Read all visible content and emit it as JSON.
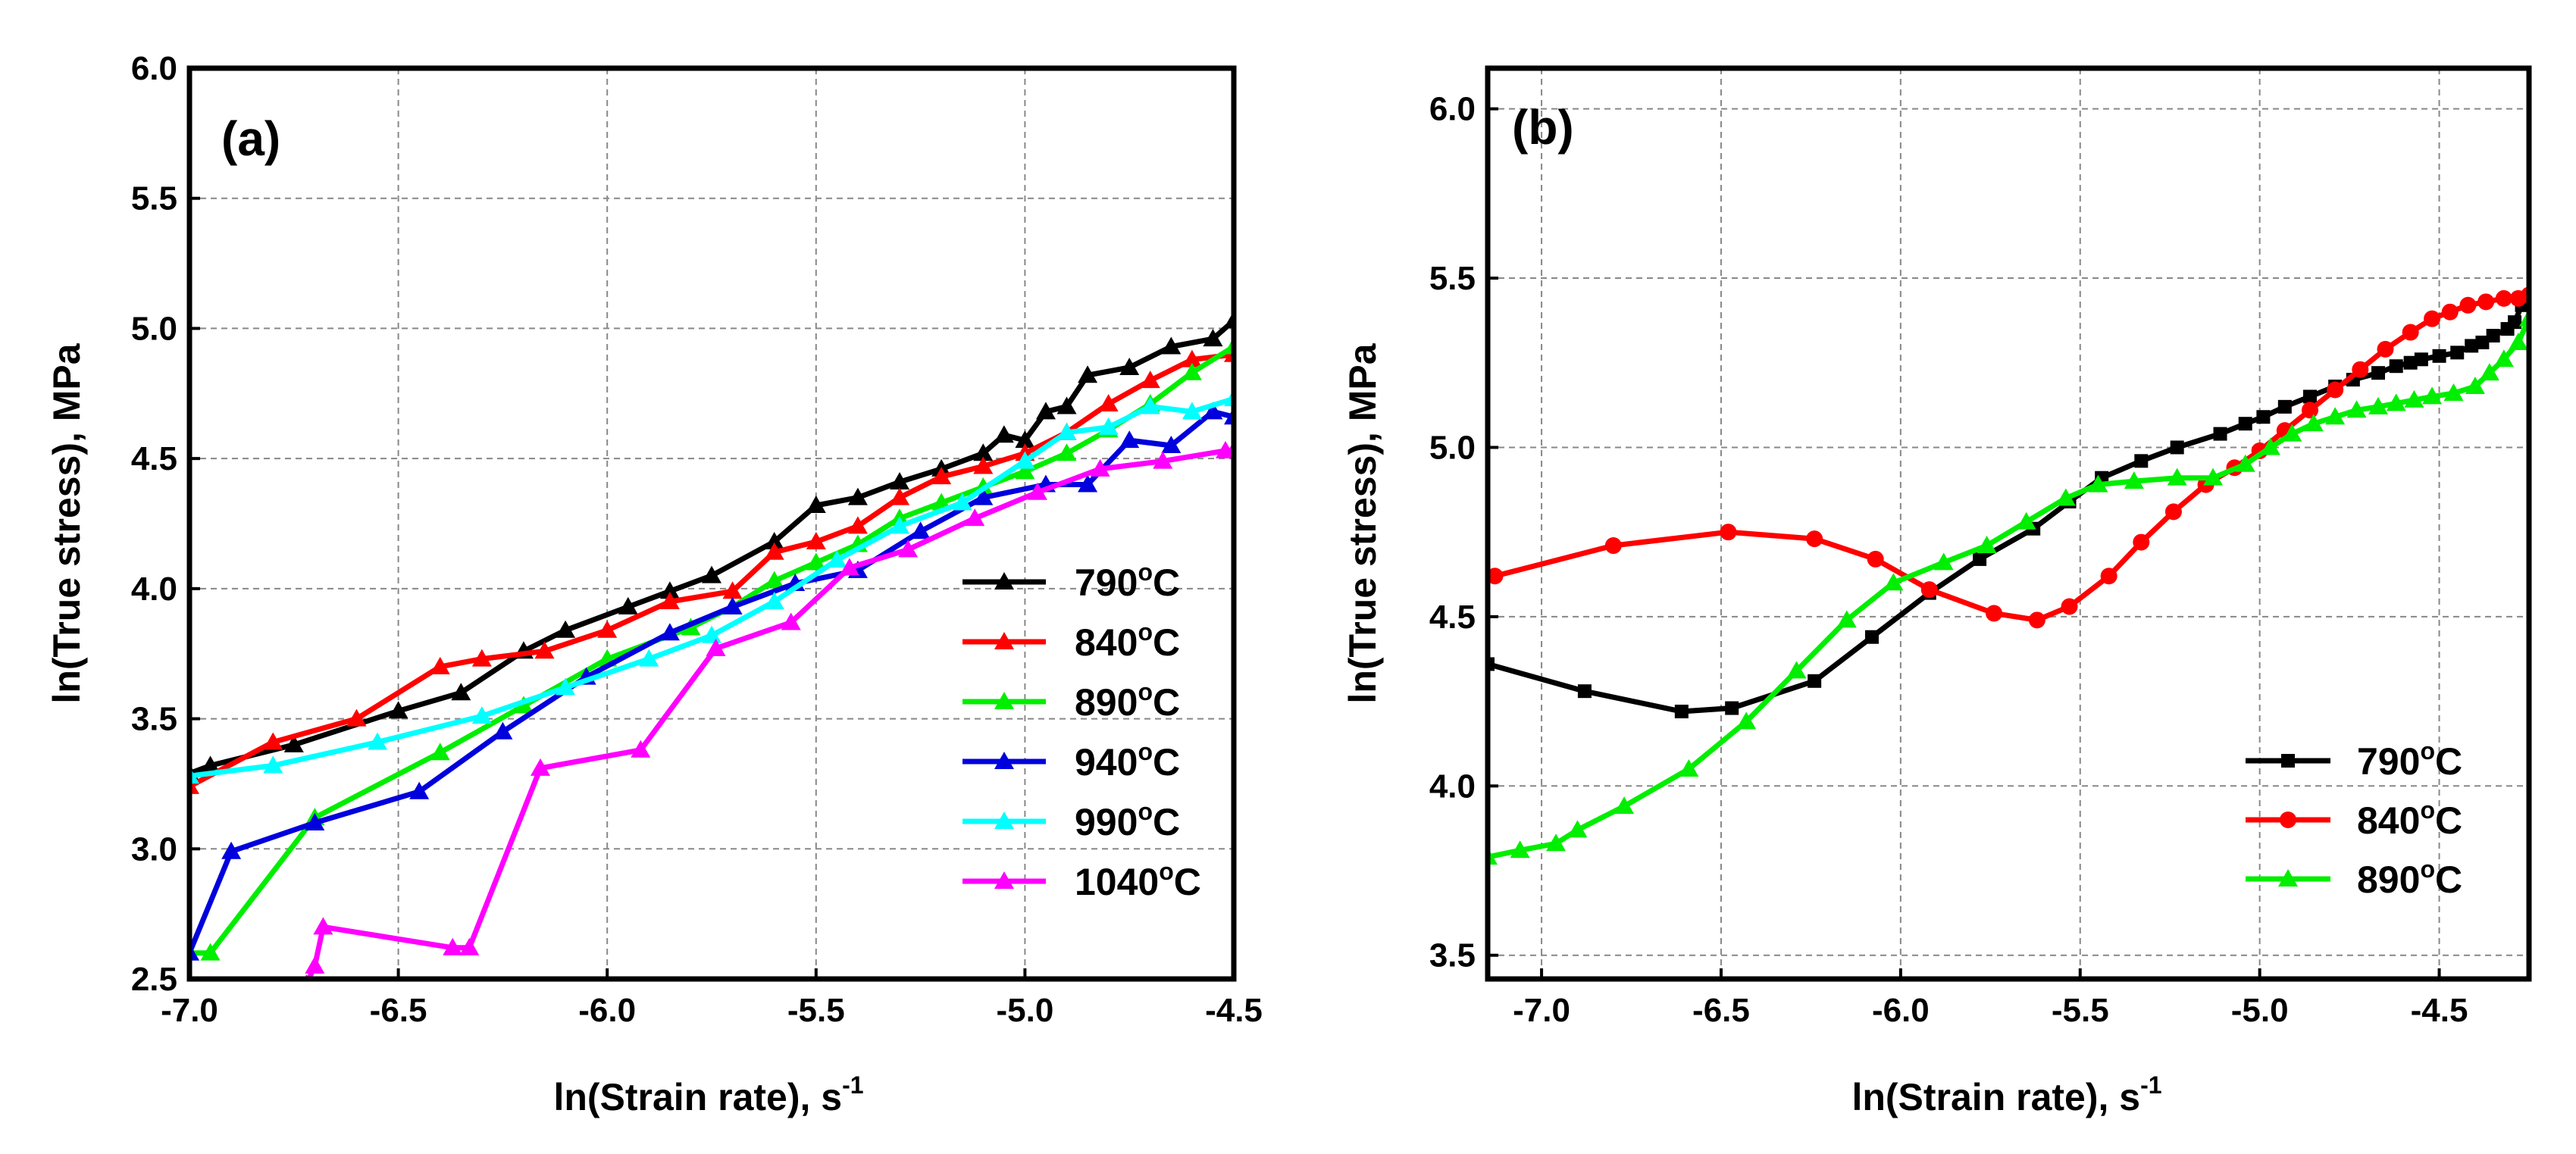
{
  "chart_data": [
    {
      "type": "line",
      "panel_label": "(a)",
      "xlabel": "ln(Strain rate), s",
      "xlabel_sup": "-1",
      "ylabel": "ln(True stress), MPa",
      "xlim": [
        -7.0,
        -4.5
      ],
      "ylim": [
        2.5,
        6.0
      ],
      "xticks": [
        "-7.0",
        "-6.5",
        "-6.0",
        "-5.5",
        "-5.0",
        "-4.5"
      ],
      "yticks": [
        "2.5",
        "3.0",
        "3.5",
        "4.0",
        "4.5",
        "5.0",
        "5.5",
        "6.0"
      ],
      "grid": true,
      "legend_position": "lower-right",
      "series": [
        {
          "name": "790",
          "unit": "°C",
          "color": "#000000",
          "marker": "triangle",
          "x": [
            -7.0,
            -6.95,
            -6.75,
            -6.5,
            -6.35,
            -6.2,
            -6.1,
            -5.95,
            -5.85,
            -5.75,
            -5.6,
            -5.5,
            -5.4,
            -5.3,
            -5.2,
            -5.1,
            -5.05,
            -5.0,
            -4.95,
            -4.9,
            -4.85,
            -4.75,
            -4.65,
            -4.55,
            -4.5
          ],
          "y": [
            3.29,
            3.32,
            3.4,
            3.53,
            3.6,
            3.76,
            3.84,
            3.93,
            3.99,
            4.05,
            4.18,
            4.32,
            4.35,
            4.41,
            4.46,
            4.52,
            4.59,
            4.57,
            4.68,
            4.7,
            4.82,
            4.85,
            4.93,
            4.96,
            5.03
          ]
        },
        {
          "name": "840",
          "unit": "°C",
          "color": "#ff0000",
          "marker": "triangle",
          "x": [
            -7.0,
            -6.8,
            -6.6,
            -6.4,
            -6.3,
            -6.15,
            -6.0,
            -5.85,
            -5.7,
            -5.6,
            -5.5,
            -5.4,
            -5.3,
            -5.2,
            -5.1,
            -5.0,
            -4.9,
            -4.8,
            -4.7,
            -4.6,
            -4.5
          ],
          "y": [
            3.24,
            3.41,
            3.5,
            3.7,
            3.73,
            3.76,
            3.84,
            3.95,
            3.99,
            4.14,
            4.18,
            4.24,
            4.35,
            4.43,
            4.47,
            4.52,
            4.6,
            4.71,
            4.8,
            4.88,
            4.9
          ]
        },
        {
          "name": "890",
          "unit": "°C",
          "color": "#00ee00",
          "marker": "triangle",
          "x": [
            -7.0,
            -6.95,
            -6.7,
            -6.4,
            -6.2,
            -6.0,
            -5.8,
            -5.7,
            -5.6,
            -5.5,
            -5.4,
            -5.3,
            -5.2,
            -5.1,
            -5.0,
            -4.9,
            -4.8,
            -4.7,
            -4.6,
            -4.5
          ],
          "y": [
            2.6,
            2.6,
            3.12,
            3.37,
            3.55,
            3.73,
            3.85,
            3.93,
            4.03,
            4.1,
            4.17,
            4.27,
            4.33,
            4.39,
            4.45,
            4.52,
            4.61,
            4.71,
            4.83,
            4.93
          ]
        },
        {
          "name": "940",
          "unit": "°C",
          "color": "#0000dd",
          "marker": "triangle",
          "x": [
            -7.0,
            -6.9,
            -6.7,
            -6.45,
            -6.25,
            -6.05,
            -5.85,
            -5.7,
            -5.55,
            -5.4,
            -5.25,
            -5.1,
            -4.95,
            -4.85,
            -4.75,
            -4.65,
            -4.55,
            -4.5
          ],
          "y": [
            2.6,
            2.99,
            3.1,
            3.22,
            3.45,
            3.66,
            3.83,
            3.93,
            4.02,
            4.07,
            4.22,
            4.35,
            4.4,
            4.4,
            4.57,
            4.55,
            4.68,
            4.66
          ]
        },
        {
          "name": "990",
          "unit": "°C",
          "color": "#00ffff",
          "marker": "triangle",
          "x": [
            -7.0,
            -6.8,
            -6.55,
            -6.3,
            -6.1,
            -5.9,
            -5.75,
            -5.6,
            -5.45,
            -5.3,
            -5.15,
            -5.0,
            -4.9,
            -4.8,
            -4.7,
            -4.6,
            -4.5
          ],
          "y": [
            3.28,
            3.32,
            3.41,
            3.51,
            3.62,
            3.73,
            3.82,
            3.95,
            4.11,
            4.24,
            4.33,
            4.49,
            4.6,
            4.62,
            4.7,
            4.68,
            4.73
          ]
        },
        {
          "name": "1040",
          "unit": "°C",
          "color": "#ff00ff",
          "marker": "triangle",
          "x": [
            -6.72,
            -6.7,
            -6.68,
            -6.37,
            -6.33,
            -6.16,
            -5.92,
            -5.74,
            -5.56,
            -5.42,
            -5.28,
            -5.12,
            -4.97,
            -4.82,
            -4.67,
            -4.52,
            -4.5
          ],
          "y": [
            2.48,
            2.55,
            2.7,
            2.62,
            2.62,
            3.31,
            3.38,
            3.77,
            3.87,
            4.08,
            4.15,
            4.27,
            4.37,
            4.46,
            4.49,
            4.53,
            4.53
          ]
        }
      ]
    },
    {
      "type": "line",
      "panel_label": "(b)",
      "xlabel": "ln(Strain rate), s",
      "xlabel_sup": "-1",
      "ylabel": "ln(True stress), MPa",
      "xlim": [
        -7.15,
        -4.25
      ],
      "ylim": [
        3.43,
        6.12
      ],
      "xticks": [
        "-7.0",
        "-6.5",
        "-6.0",
        "-5.5",
        "-5.0",
        "-4.5"
      ],
      "xtick_values": [
        -7.0,
        -6.5,
        -6.0,
        -5.5,
        -5.0,
        -4.5
      ],
      "yticks": [
        "3.5",
        "4.0",
        "4.5",
        "5.0",
        "5.5",
        "6.0"
      ],
      "ytick_values": [
        3.5,
        4.0,
        4.5,
        5.0,
        5.5,
        6.0
      ],
      "grid": true,
      "legend_position": "lower-right",
      "series": [
        {
          "name": "790",
          "unit": "°C",
          "color": "#000000",
          "marker": "square",
          "x": [
            -7.15,
            -6.88,
            -6.61,
            -6.47,
            -6.24,
            -6.08,
            -5.92,
            -5.78,
            -5.63,
            -5.53,
            -5.44,
            -5.33,
            -5.23,
            -5.11,
            -5.04,
            -4.99,
            -4.93,
            -4.86,
            -4.79,
            -4.74,
            -4.67,
            -4.62,
            -4.58,
            -4.55,
            -4.5,
            -4.45,
            -4.41,
            -4.38,
            -4.35,
            -4.31,
            -4.29,
            -4.27
          ],
          "y": [
            4.36,
            4.28,
            4.22,
            4.23,
            4.31,
            4.44,
            4.57,
            4.67,
            4.76,
            4.84,
            4.91,
            4.96,
            5.0,
            5.04,
            5.07,
            5.09,
            5.12,
            5.15,
            5.18,
            5.2,
            5.22,
            5.24,
            5.25,
            5.26,
            5.27,
            5.28,
            5.3,
            5.31,
            5.33,
            5.35,
            5.37,
            5.42
          ]
        },
        {
          "name": "840",
          "unit": "°C",
          "color": "#ff0000",
          "marker": "circle",
          "x": [
            -7.13,
            -6.8,
            -6.48,
            -6.24,
            -6.07,
            -5.92,
            -5.74,
            -5.62,
            -5.53,
            -5.42,
            -5.33,
            -5.24,
            -5.15,
            -5.07,
            -5.0,
            -4.93,
            -4.86,
            -4.79,
            -4.72,
            -4.65,
            -4.58,
            -4.52,
            -4.47,
            -4.42,
            -4.37,
            -4.32,
            -4.28,
            -4.25
          ],
          "y": [
            4.62,
            4.71,
            4.75,
            4.73,
            4.67,
            4.58,
            4.51,
            4.49,
            4.53,
            4.62,
            4.72,
            4.81,
            4.89,
            4.94,
            4.99,
            5.05,
            5.11,
            5.17,
            5.23,
            5.29,
            5.34,
            5.38,
            5.4,
            5.42,
            5.43,
            5.44,
            5.44,
            5.45
          ]
        },
        {
          "name": "890",
          "unit": "°C",
          "color": "#00ee00",
          "marker": "triangle",
          "x": [
            -7.15,
            -7.06,
            -6.96,
            -6.9,
            -6.77,
            -6.59,
            -6.43,
            -6.29,
            -6.15,
            -6.02,
            -5.88,
            -5.76,
            -5.65,
            -5.54,
            -5.45,
            -5.35,
            -5.23,
            -5.13,
            -5.04,
            -4.97,
            -4.91,
            -4.85,
            -4.79,
            -4.73,
            -4.67,
            -4.62,
            -4.57,
            -4.52,
            -4.46,
            -4.4,
            -4.36,
            -4.32,
            -4.28,
            -4.25
          ],
          "y": [
            3.79,
            3.81,
            3.83,
            3.87,
            3.94,
            4.05,
            4.19,
            4.34,
            4.49,
            4.6,
            4.66,
            4.71,
            4.78,
            4.85,
            4.89,
            4.9,
            4.91,
            4.91,
            4.95,
            5.0,
            5.04,
            5.07,
            5.09,
            5.11,
            5.12,
            5.13,
            5.14,
            5.15,
            5.16,
            5.18,
            5.22,
            5.26,
            5.31,
            5.38
          ]
        }
      ]
    }
  ]
}
